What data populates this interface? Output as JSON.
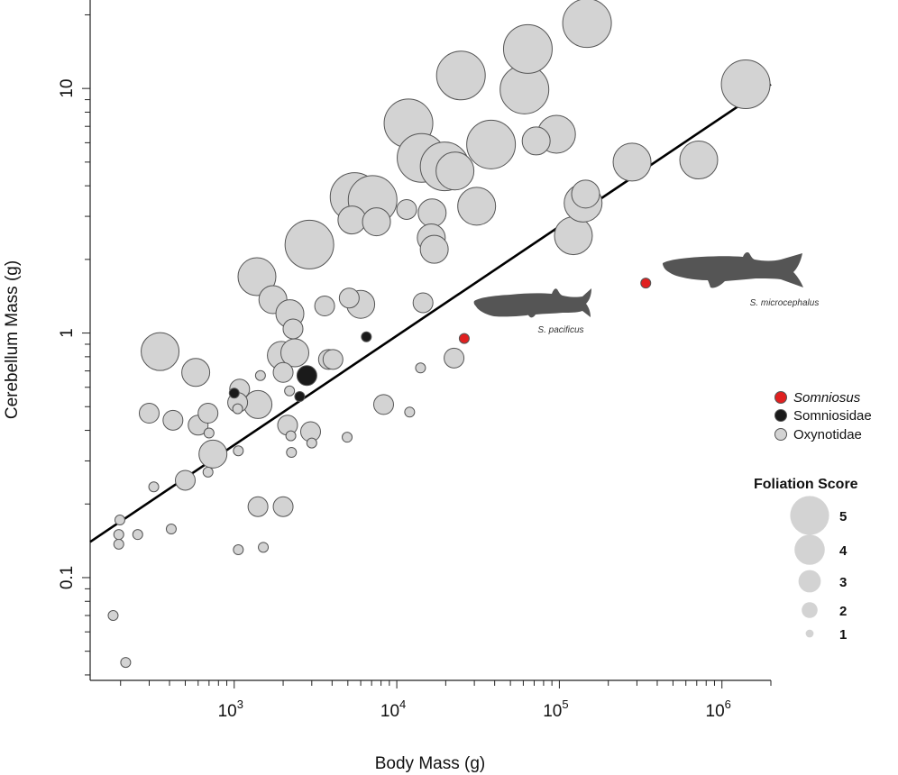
{
  "chart_data": {
    "type": "scatter",
    "x_scale": "log",
    "y_scale": "log",
    "xlabel": "Body Mass (g)",
    "ylabel": "Cerebellum Mass (g)",
    "xlim": [
      130,
      2000000
    ],
    "ylim": [
      0.038,
      23
    ],
    "x_ticks": [
      {
        "value": 1000,
        "base": "10",
        "exp": "3"
      },
      {
        "value": 10000,
        "base": "10",
        "exp": "4"
      },
      {
        "value": 100000,
        "base": "10",
        "exp": "5"
      },
      {
        "value": 1000000,
        "base": "10",
        "exp": "6"
      }
    ],
    "y_ticks": [
      {
        "value": 0.1,
        "label": "0.1"
      },
      {
        "value": 1,
        "label": "1"
      },
      {
        "value": 10,
        "label": "10"
      }
    ],
    "regression_line": {
      "x": [
        130,
        2000000
      ],
      "y": [
        0.14,
        10.4
      ]
    },
    "colors": {
      "Somniosus": "#e02020",
      "Somniosidae": "#1a1a1a",
      "Oxynotidae": "#d3d3d3",
      "stroke": "#555555",
      "shark": "#555555"
    },
    "legend": {
      "groups": [
        {
          "key": "Somniosus",
          "label": "Somniosus",
          "italic": true
        },
        {
          "key": "Somniosidae",
          "label": "Somniosidae",
          "italic": false
        },
        {
          "key": "Oxynotidae",
          "label": "Oxynotidae",
          "italic": false
        }
      ],
      "size_title": "Foliation Score",
      "sizes": [
        {
          "score": 5,
          "label": "5"
        },
        {
          "score": 4,
          "label": "4"
        },
        {
          "score": 3,
          "label": "3"
        },
        {
          "score": 2,
          "label": "2"
        },
        {
          "score": 1,
          "label": "1"
        }
      ]
    },
    "annotations": [
      {
        "label": "S. pacificus",
        "x": 26000,
        "y": 0.95
      },
      {
        "label": "S. microcephalus",
        "x": 340000,
        "y": 1.6
      }
    ],
    "points": [
      {
        "x": 180,
        "y": 0.07,
        "s": 1,
        "g": "Oxynotidae"
      },
      {
        "x": 215,
        "y": 0.045,
        "s": 1,
        "g": "Oxynotidae"
      },
      {
        "x": 195,
        "y": 0.137,
        "s": 1,
        "g": "Oxynotidae"
      },
      {
        "x": 195,
        "y": 0.15,
        "s": 1,
        "g": "Oxynotidae"
      },
      {
        "x": 198,
        "y": 0.172,
        "s": 1,
        "g": "Oxynotidae"
      },
      {
        "x": 255,
        "y": 0.15,
        "s": 1,
        "g": "Oxynotidae"
      },
      {
        "x": 320,
        "y": 0.235,
        "s": 1,
        "g": "Oxynotidae"
      },
      {
        "x": 410,
        "y": 0.158,
        "s": 1,
        "g": "Oxynotidae"
      },
      {
        "x": 300,
        "y": 0.47,
        "s": 2,
        "g": "Oxynotidae"
      },
      {
        "x": 420,
        "y": 0.44,
        "s": 2,
        "g": "Oxynotidae"
      },
      {
        "x": 500,
        "y": 0.25,
        "s": 2,
        "g": "Oxynotidae"
      },
      {
        "x": 350,
        "y": 0.84,
        "s": 4,
        "g": "Oxynotidae"
      },
      {
        "x": 580,
        "y": 0.69,
        "s": 3,
        "g": "Oxynotidae"
      },
      {
        "x": 600,
        "y": 0.42,
        "s": 2,
        "g": "Oxynotidae"
      },
      {
        "x": 690,
        "y": 0.47,
        "s": 2,
        "g": "Oxynotidae"
      },
      {
        "x": 700,
        "y": 0.39,
        "s": 1,
        "g": "Oxynotidae"
      },
      {
        "x": 690,
        "y": 0.27,
        "s": 1,
        "g": "Oxynotidae"
      },
      {
        "x": 740,
        "y": 0.32,
        "s": 3,
        "g": "Oxynotidae"
      },
      {
        "x": 1060,
        "y": 0.13,
        "s": 1,
        "g": "Oxynotidae"
      },
      {
        "x": 1060,
        "y": 0.33,
        "s": 1,
        "g": "Oxynotidae"
      },
      {
        "x": 1050,
        "y": 0.49,
        "s": 1,
        "g": "Oxynotidae"
      },
      {
        "x": 1080,
        "y": 0.59,
        "s": 2,
        "g": "Oxynotidae"
      },
      {
        "x": 1050,
        "y": 0.52,
        "s": 2,
        "g": "Oxynotidae"
      },
      {
        "x": 1000,
        "y": 0.568,
        "s": 1,
        "g": "Somniosidae"
      },
      {
        "x": 1400,
        "y": 0.51,
        "s": 3,
        "g": "Oxynotidae"
      },
      {
        "x": 1400,
        "y": 0.195,
        "s": 2,
        "g": "Oxynotidae"
      },
      {
        "x": 1510,
        "y": 0.133,
        "s": 1,
        "g": "Oxynotidae"
      },
      {
        "x": 1450,
        "y": 0.67,
        "s": 1,
        "g": "Oxynotidae"
      },
      {
        "x": 1380,
        "y": 1.7,
        "s": 4,
        "g": "Oxynotidae"
      },
      {
        "x": 1730,
        "y": 1.37,
        "s": 3,
        "g": "Oxynotidae"
      },
      {
        "x": 1950,
        "y": 0.81,
        "s": 3,
        "g": "Oxynotidae"
      },
      {
        "x": 2000,
        "y": 0.69,
        "s": 2,
        "g": "Oxynotidae"
      },
      {
        "x": 2000,
        "y": 0.195,
        "s": 2,
        "g": "Oxynotidae"
      },
      {
        "x": 2130,
        "y": 0.42,
        "s": 2,
        "g": "Oxynotidae"
      },
      {
        "x": 2190,
        "y": 0.58,
        "s": 1,
        "g": "Oxynotidae"
      },
      {
        "x": 2230,
        "y": 0.38,
        "s": 1,
        "g": "Oxynotidae"
      },
      {
        "x": 2250,
        "y": 0.325,
        "s": 1,
        "g": "Oxynotidae"
      },
      {
        "x": 2200,
        "y": 1.2,
        "s": 3,
        "g": "Oxynotidae"
      },
      {
        "x": 2300,
        "y": 1.04,
        "s": 2,
        "g": "Oxynotidae"
      },
      {
        "x": 2360,
        "y": 0.83,
        "s": 3,
        "g": "Oxynotidae"
      },
      {
        "x": 2530,
        "y": 0.55,
        "s": 1,
        "g": "Somniosidae"
      },
      {
        "x": 2800,
        "y": 0.67,
        "s": 2,
        "g": "Somniosidae"
      },
      {
        "x": 2900,
        "y": 2.3,
        "s": 5,
        "g": "Oxynotidae"
      },
      {
        "x": 2950,
        "y": 0.395,
        "s": 2,
        "g": "Oxynotidae"
      },
      {
        "x": 3000,
        "y": 0.355,
        "s": 1,
        "g": "Oxynotidae"
      },
      {
        "x": 3600,
        "y": 1.29,
        "s": 2,
        "g": "Oxynotidae"
      },
      {
        "x": 3800,
        "y": 0.78,
        "s": 2,
        "g": "Oxynotidae"
      },
      {
        "x": 4050,
        "y": 0.78,
        "s": 2,
        "g": "Oxynotidae"
      },
      {
        "x": 4950,
        "y": 0.375,
        "s": 1,
        "g": "Oxynotidae"
      },
      {
        "x": 5100,
        "y": 1.39,
        "s": 2,
        "g": "Oxynotidae"
      },
      {
        "x": 5300,
        "y": 2.9,
        "s": 3,
        "g": "Oxynotidae"
      },
      {
        "x": 5500,
        "y": 3.6,
        "s": 5,
        "g": "Oxynotidae"
      },
      {
        "x": 6000,
        "y": 1.31,
        "s": 3,
        "g": "Oxynotidae"
      },
      {
        "x": 6500,
        "y": 0.965,
        "s": 1,
        "g": "Somniosidae"
      },
      {
        "x": 7100,
        "y": 3.5,
        "s": 5,
        "g": "Oxynotidae"
      },
      {
        "x": 7500,
        "y": 2.85,
        "s": 3,
        "g": "Oxynotidae"
      },
      {
        "x": 8300,
        "y": 0.51,
        "s": 2,
        "g": "Oxynotidae"
      },
      {
        "x": 11500,
        "y": 3.2,
        "s": 2,
        "g": "Oxynotidae"
      },
      {
        "x": 12000,
        "y": 0.475,
        "s": 1,
        "g": "Oxynotidae"
      },
      {
        "x": 11800,
        "y": 7.2,
        "s": 5,
        "g": "Oxynotidae"
      },
      {
        "x": 14000,
        "y": 0.72,
        "s": 1,
        "g": "Oxynotidae"
      },
      {
        "x": 14500,
        "y": 1.33,
        "s": 2,
        "g": "Oxynotidae"
      },
      {
        "x": 14200,
        "y": 5.2,
        "s": 5,
        "g": "Oxynotidae"
      },
      {
        "x": 16500,
        "y": 3.1,
        "s": 3,
        "g": "Oxynotidae"
      },
      {
        "x": 16300,
        "y": 2.45,
        "s": 3,
        "g": "Oxynotidae"
      },
      {
        "x": 17000,
        "y": 2.2,
        "s": 3,
        "g": "Oxynotidae"
      },
      {
        "x": 19700,
        "y": 4.8,
        "s": 5,
        "g": "Oxynotidae"
      },
      {
        "x": 22800,
        "y": 4.6,
        "s": 4,
        "g": "Oxynotidae"
      },
      {
        "x": 22500,
        "y": 0.79,
        "s": 2,
        "g": "Oxynotidae"
      },
      {
        "x": 24800,
        "y": 11.3,
        "s": 5,
        "g": "Oxynotidae"
      },
      {
        "x": 31000,
        "y": 3.3,
        "s": 4,
        "g": "Oxynotidae"
      },
      {
        "x": 38000,
        "y": 5.9,
        "s": 5,
        "g": "Oxynotidae"
      },
      {
        "x": 26000,
        "y": 0.95,
        "s": 1,
        "g": "Somniosus"
      },
      {
        "x": 61000,
        "y": 9.9,
        "s": 5,
        "g": "Oxynotidae"
      },
      {
        "x": 64000,
        "y": 14.5,
        "s": 5,
        "g": "Oxynotidae"
      },
      {
        "x": 72000,
        "y": 6.1,
        "s": 3,
        "g": "Oxynotidae"
      },
      {
        "x": 96000,
        "y": 6.5,
        "s": 4,
        "g": "Oxynotidae"
      },
      {
        "x": 122000,
        "y": 2.5,
        "s": 4,
        "g": "Oxynotidae"
      },
      {
        "x": 140000,
        "y": 3.4,
        "s": 4,
        "g": "Oxynotidae"
      },
      {
        "x": 145000,
        "y": 3.7,
        "s": 3,
        "g": "Oxynotidae"
      },
      {
        "x": 148000,
        "y": 18.5,
        "s": 5,
        "g": "Oxynotidae"
      },
      {
        "x": 280000,
        "y": 5.0,
        "s": 4,
        "g": "Oxynotidae"
      },
      {
        "x": 340000,
        "y": 1.6,
        "s": 1,
        "g": "Somniosus"
      },
      {
        "x": 720000,
        "y": 5.1,
        "s": 4,
        "g": "Oxynotidae"
      },
      {
        "x": 1400000,
        "y": 10.4,
        "s": 5,
        "g": "Oxynotidae"
      }
    ]
  }
}
